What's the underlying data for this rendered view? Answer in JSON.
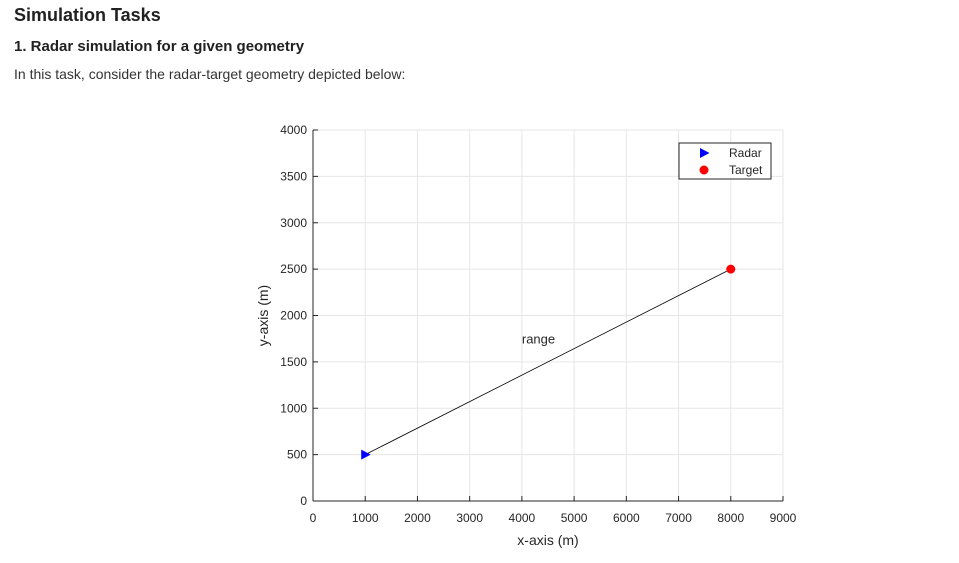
{
  "document": {
    "title": "Simulation Tasks",
    "section_title": "1. Radar simulation for a given geometry",
    "intro": "In this task, consider the radar-target geometry depicted below:"
  },
  "chart_data": {
    "type": "scatter",
    "xlabel": "x-axis (m)",
    "ylabel": "y-axis (m)",
    "xlim": [
      0,
      9000
    ],
    "ylim": [
      0,
      4000
    ],
    "xticks": [
      0,
      1000,
      2000,
      3000,
      4000,
      5000,
      6000,
      7000,
      8000,
      9000
    ],
    "yticks": [
      0,
      500,
      1000,
      1500,
      2000,
      2500,
      3000,
      3500,
      4000
    ],
    "grid": true,
    "legend_position": "top-right",
    "series": [
      {
        "name": "Radar",
        "marker": "triangle-right",
        "color": "#0000ff",
        "x": [
          1000
        ],
        "y": [
          500
        ]
      },
      {
        "name": "Target",
        "marker": "circle",
        "color": "#ff0000",
        "x": [
          8000
        ],
        "y": [
          2500
        ]
      }
    ],
    "lines": [
      {
        "x": [
          1000,
          8000
        ],
        "y": [
          500,
          2500
        ],
        "color": "#000000"
      }
    ],
    "annotations": [
      {
        "text": "range",
        "x": 4000,
        "y": 1700
      }
    ]
  }
}
